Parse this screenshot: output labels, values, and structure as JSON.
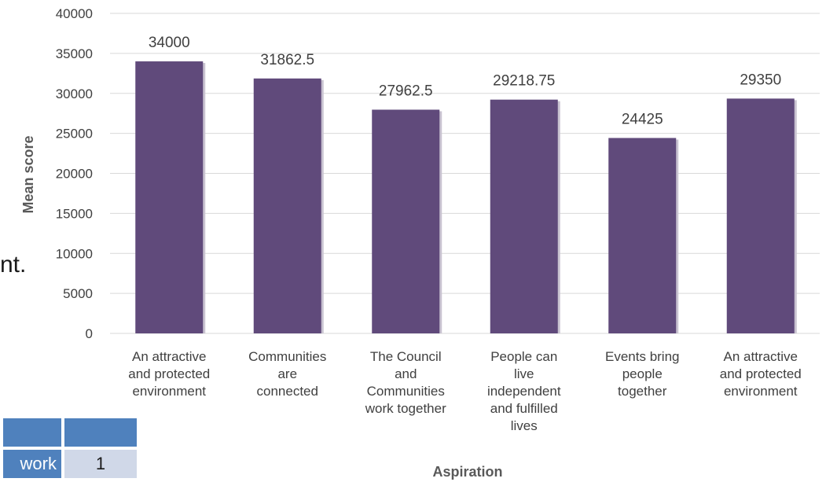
{
  "background": {
    "fragment_text": "nt.",
    "table": {
      "row_label": "work",
      "row_value": "1"
    }
  },
  "colors": {
    "bar": "#604a7b",
    "bar_shadow": "#c9c3d1",
    "gridline": "#d9d9d9",
    "text": "#404040"
  },
  "chart_data": {
    "type": "bar",
    "categories": [
      "An attractive and protected environment",
      "Communities are connected",
      "The Council and Communities work together",
      "People can live independent and fulfilled lives",
      "Events bring people together",
      "An attractive and protected environment"
    ],
    "category_lines": [
      [
        "An attractive",
        "and protected",
        "environment"
      ],
      [
        "Communities",
        "are",
        "connected"
      ],
      [
        "The Council",
        "and",
        "Communities",
        "work together"
      ],
      [
        "People can",
        "live",
        "independent",
        "and fulfilled",
        "lives"
      ],
      [
        "Events bring",
        "people",
        "together"
      ],
      [
        "An attractive",
        "and protected",
        "environment"
      ]
    ],
    "values": [
      34000,
      31862.5,
      27962.5,
      29218.75,
      24425,
      29350
    ],
    "value_labels": [
      "34000",
      "31862.5",
      "27962.5",
      "29218.75",
      "24425",
      "29350"
    ],
    "xlabel": "Aspiration",
    "ylabel": "Mean score",
    "ylim": [
      0,
      40000
    ],
    "yticks": [
      0,
      5000,
      10000,
      15000,
      20000,
      25000,
      30000,
      35000,
      40000
    ],
    "grid": true,
    "legend": "none"
  }
}
